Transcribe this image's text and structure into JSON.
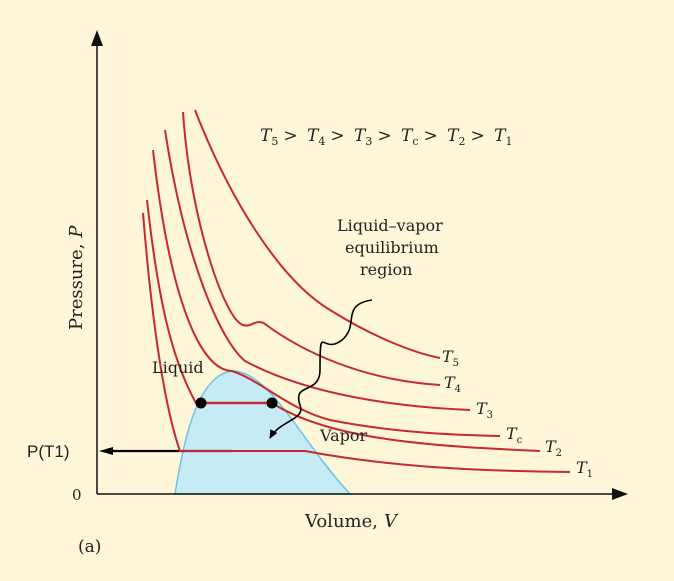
{
  "colors": {
    "background": "#fdf6d8",
    "isotherm": "#c42a2f",
    "dome_fill": "#c7ebf5",
    "dome_stroke": "#6cc3e2",
    "axis": "#111111",
    "marker": "#000000"
  },
  "axes": {
    "y_label_word": "Pressure,",
    "y_label_sym": "P",
    "x_label_word": "Volume,",
    "x_label_sym": "V",
    "origin": "0",
    "pressure_tick": "P(T1)"
  },
  "ordering": {
    "T5": "T",
    "s5": "5",
    "T4": "T",
    "s4": "4",
    "T3": "T",
    "s3": "3",
    "Tc": "T",
    "sc": "c",
    "T2": "T",
    "s2": "2",
    "T1": "T",
    "s1": "1",
    "gt": ">"
  },
  "isotherm_labels": {
    "T5": {
      "base": "T",
      "sub": "5"
    },
    "T4": {
      "base": "T",
      "sub": "4"
    },
    "T3": {
      "base": "T",
      "sub": "3"
    },
    "Tc": {
      "base": "T",
      "sub": "c"
    },
    "T2": {
      "base": "T",
      "sub": "2"
    },
    "T1": {
      "base": "T",
      "sub": "1"
    }
  },
  "annotations": {
    "region_line1": "Liquid–vapor",
    "region_line2": "equilibrium",
    "region_line3": "region",
    "liquid": "Liquid",
    "vapor": "Vapor",
    "panel": "(a)"
  }
}
